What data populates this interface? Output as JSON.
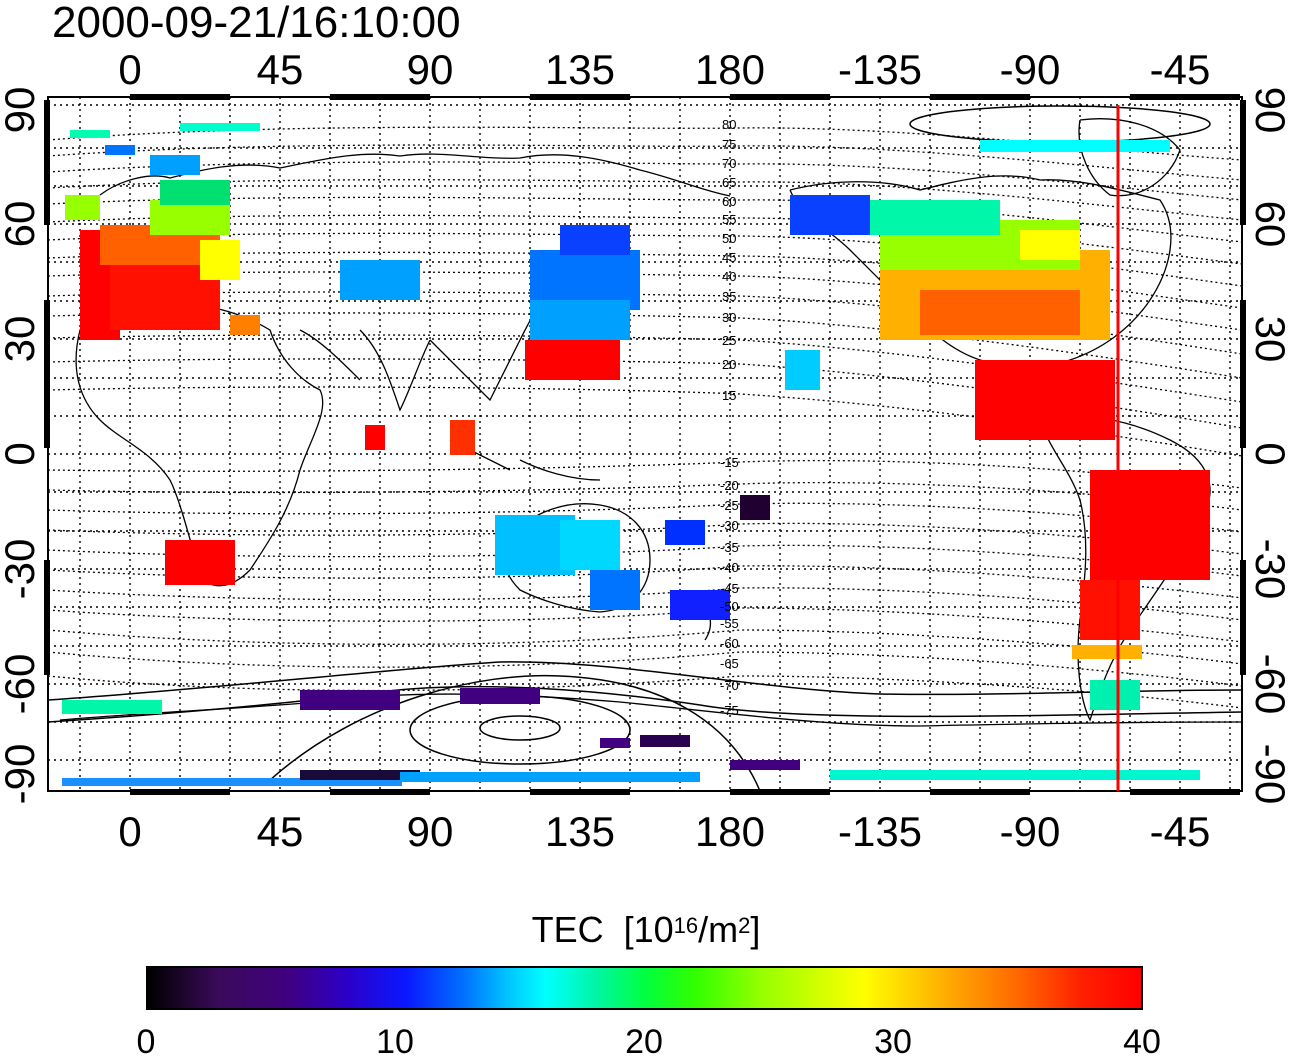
{
  "title": "2000-09-21/16:10:00",
  "axes": {
    "lon_ticks": [
      "0",
      "45",
      "90",
      "135",
      "180",
      "-135",
      "-90",
      "-45"
    ],
    "lat_ticks": [
      "90",
      "60",
      "30",
      "0",
      "-30",
      "-60",
      "-90"
    ]
  },
  "contours": {
    "north_labels": [
      "80",
      "75",
      "70",
      "65",
      "60",
      "55",
      "50",
      "45",
      "40",
      "35",
      "30",
      "25",
      "20",
      "15"
    ],
    "south_labels": [
      "-15",
      "-20",
      "-25",
      "-30",
      "-35",
      "-40",
      "-45",
      "-50",
      "-55",
      "-60",
      "-65",
      "-70",
      "-75"
    ]
  },
  "colorbar": {
    "title": "TEC",
    "unit_prefix": "[10",
    "unit_exp": "16",
    "unit_mid": "/m",
    "unit_exp2": "2",
    "unit_suffix": "]",
    "tick_labels": [
      "0",
      "10",
      "20",
      "30",
      "40"
    ],
    "range": [
      0,
      40
    ]
  },
  "terminator_color": "#ff0000"
}
